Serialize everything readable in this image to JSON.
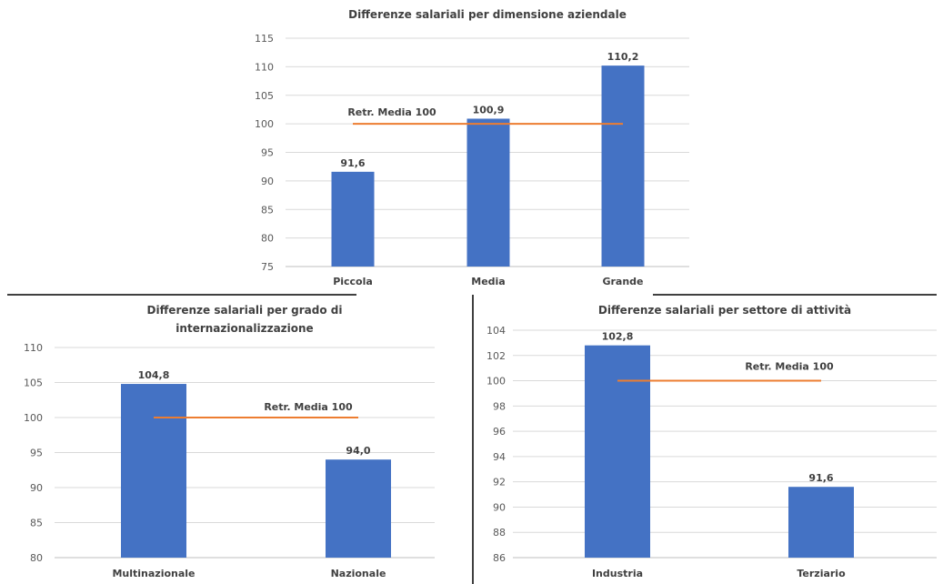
{
  "colors": {
    "bar": "#4472C4",
    "reference_line": "#ED7D31",
    "separator": "#000000"
  },
  "chart_data": [
    {
      "type": "bar",
      "title_lines": [
        "Differenze salariali per dimensione aziendale"
      ],
      "categories": [
        "Piccola",
        "Media",
        "Grande"
      ],
      "values": [
        91.6,
        100.9,
        110.2
      ],
      "data_labels": [
        "91,6",
        "100,9",
        "110,2"
      ],
      "ylim": [
        75,
        115
      ],
      "yticks": [
        75,
        80,
        85,
        90,
        95,
        100,
        105,
        110,
        115
      ],
      "reference_line": {
        "value": 100,
        "label": "Retr. Media 100"
      },
      "grid": true
    },
    {
      "type": "bar",
      "title_lines": [
        "Differenze salariali per grado di",
        "internazionalizzazione"
      ],
      "categories": [
        "Multinazionale",
        "Nazionale"
      ],
      "values": [
        104.8,
        94.0
      ],
      "data_labels": [
        "104,8",
        "94,0"
      ],
      "ylim": [
        80,
        110
      ],
      "yticks": [
        80,
        85,
        90,
        95,
        100,
        105,
        110
      ],
      "reference_line": {
        "value": 100,
        "label": "Retr. Media 100"
      },
      "grid": true
    },
    {
      "type": "bar",
      "title_lines": [
        "Differenze salariali per settore di attività"
      ],
      "categories": [
        "Industria",
        "Terziario"
      ],
      "values": [
        102.8,
        91.6
      ],
      "data_labels": [
        "102,8",
        "91,6"
      ],
      "ylim": [
        86,
        104
      ],
      "yticks": [
        86,
        88,
        90,
        92,
        94,
        96,
        98,
        100,
        102,
        104
      ],
      "reference_line": {
        "value": 100,
        "label": "Retr. Media 100"
      },
      "grid": true
    }
  ]
}
